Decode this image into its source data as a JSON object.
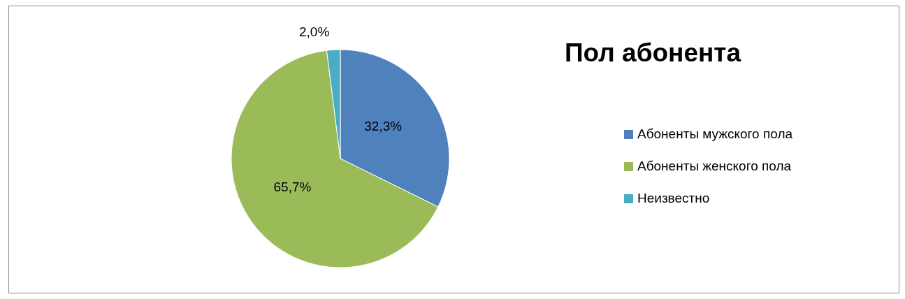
{
  "chart_data": {
    "type": "pie",
    "title": "Пол абонента",
    "categories": [
      "Абоненты мужского пола",
      "Абоненты женского пола",
      "Неизвестно"
    ],
    "values": [
      32.3,
      65.7,
      2.0
    ],
    "colors": [
      "#4f81bd",
      "#9bbb59",
      "#4bacc6"
    ],
    "value_labels": [
      "32,3%",
      "65,7%",
      "2,0%"
    ],
    "legend": "right"
  }
}
